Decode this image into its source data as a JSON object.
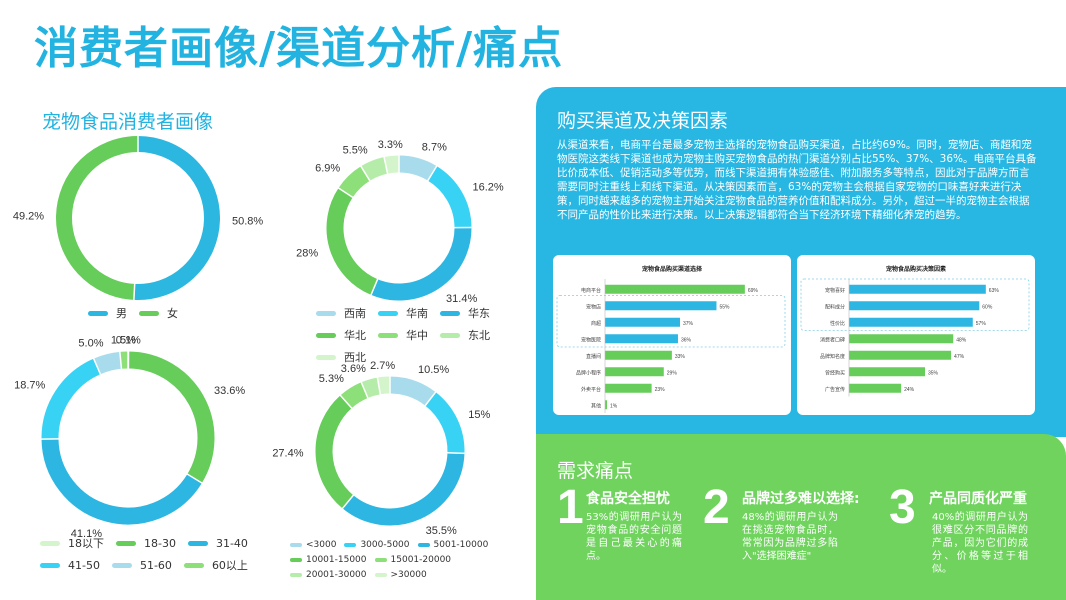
{
  "title": "消费者画像/渠道分析/痛点",
  "left_section_title": "宠物食品消费者画像",
  "chart_data": [
    {
      "type": "pie",
      "id": "gender",
      "labels": [
        "男",
        "女"
      ],
      "values": [
        50.8,
        49.2
      ],
      "value_labels": [
        "50.8%",
        "49.2%"
      ],
      "colors": [
        "#2cb7e0",
        "#66cc5a"
      ]
    },
    {
      "type": "pie",
      "id": "region",
      "labels": [
        "西南",
        "华南",
        "华东",
        "华北",
        "华中",
        "东北",
        "西北"
      ],
      "values": [
        8.7,
        16.2,
        31.4,
        28,
        6.9,
        5.5,
        3.3
      ],
      "value_labels": [
        "8.7%",
        "16.2%",
        "31.4%",
        "28%",
        "6.9%",
        "5.5%",
        "3.3%"
      ],
      "colors": [
        "#a8dcec",
        "#38d2f4",
        "#2db6e2",
        "#66cc5a",
        "#8ddf7a",
        "#b6ecaa",
        "#d4f5cc"
      ]
    },
    {
      "type": "pie",
      "id": "age",
      "labels": [
        "18以下",
        "18-30",
        "31-40",
        "41-50",
        "51-60",
        "60以上"
      ],
      "values": [
        0.1,
        33.6,
        41.1,
        18.7,
        5.0,
        1.5
      ],
      "value_labels": [
        "0.1%",
        "33.6%",
        "41.1%",
        "18.7%",
        "5.0%",
        "1.5%"
      ],
      "colors": [
        "#d4f5cc",
        "#66cc5a",
        "#2db6e2",
        "#38d2f4",
        "#a8dcec",
        "#8ddf7a"
      ]
    },
    {
      "type": "pie",
      "id": "income",
      "labels": [
        "<3000",
        "3000-5000",
        "5001-10000",
        "10001-15000",
        "15001-20000",
        "20001-30000",
        ">30000"
      ],
      "values": [
        10.5,
        15,
        35.5,
        27.4,
        5.3,
        3.6,
        2.7
      ],
      "value_labels": [
        "10.5%",
        "15%",
        "35.5%",
        "27.4%",
        "5.3%",
        "3.6%",
        "2.7%"
      ],
      "colors": [
        "#a8dcec",
        "#38d2f4",
        "#2db6e2",
        "#66cc5a",
        "#8ddf7a",
        "#b6ecaa",
        "#d4f5cc"
      ]
    },
    {
      "type": "bar",
      "id": "channel",
      "orientation": "horizontal",
      "title": "宠物食品购买渠道选择",
      "categories": [
        "电商平台",
        "宠物店",
        "商超",
        "宠物医院",
        "直播间",
        "品牌小程序",
        "外卖平台",
        "其他"
      ],
      "values": [
        69,
        55,
        37,
        36,
        33,
        29,
        23,
        1
      ],
      "value_labels": [
        "69%",
        "55%",
        "37%",
        "36%",
        "33%",
        "29%",
        "23%",
        "1%"
      ],
      "xlim": [
        0,
        75
      ]
    },
    {
      "type": "bar",
      "id": "decision",
      "orientation": "horizontal",
      "title": "宠物食品购买决策因素",
      "categories": [
        "宠物喜好",
        "配料成分",
        "性价比",
        "消费者口碑",
        "品牌知名度",
        "曾经购买",
        "广告宣传"
      ],
      "values": [
        63,
        60,
        57,
        48,
        47,
        35,
        24
      ],
      "value_labels": [
        "63%",
        "60%",
        "57%",
        "48%",
        "47%",
        "35%",
        "24%"
      ],
      "xlim": [
        0,
        70
      ]
    }
  ],
  "channel_section": {
    "title": "购买渠道及决策因素",
    "text": "从渠道来看，电商平台是最多宠物主选择的宠物食品购买渠道，占比约69%。同时，宠物店、商超和宠物医院这类线下渠道也成为宠物主购买宠物食品的热门渠道分别占比55%、37%、36%。电商平台具备比价成本低、促销活动多等优势，而线下渠道拥有体验感佳、附加服务多等特点，因此对于品牌方而言需要同时注重线上和线下渠道。从决策因素而言，63%的宠物主会根据自家宠物的口味喜好来进行决策，同时越来越多的宠物主开始关注宠物食品的营养价值和配料成分。另外，超过一半的宠物主会根据不同产品的性价比来进行决策。以上决策逻辑都符合当下经济环境下精细化养宠的趋势。"
  },
  "pain_section": {
    "title": "需求痛点",
    "items": [
      {
        "num": "1",
        "title": "食品安全担忧",
        "text": "53%的调研用户认为宠物食品的安全问题是自己最关心的痛点。"
      },
      {
        "num": "2",
        "title": "品牌过多难以选择:",
        "text": "48%的调研用户认为在挑选宠物食品时，常常因为品牌过多陷入\"选择困难症\""
      },
      {
        "num": "3",
        "title": "产品同质化严重",
        "text": "40%的调研用户认为很难区分不同品牌的产品，因为它们的成分、价格等过于相似。"
      }
    ]
  }
}
